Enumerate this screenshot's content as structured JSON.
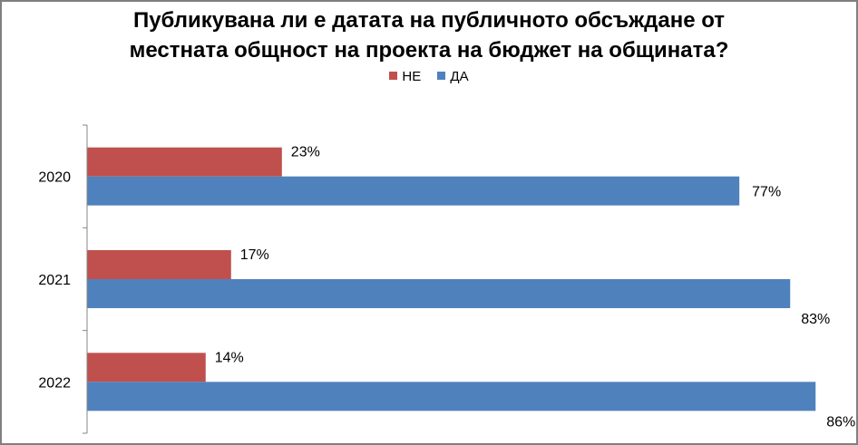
{
  "chart_data": {
    "type": "bar",
    "orientation": "horizontal",
    "title": "Публикувана ли е датата на публичното обсъждане от местната общност на проекта на бюджет на общината?",
    "title_lines": [
      "Публикувана ли е датата на публичното обсъждане от",
      "местната общност на проекта на бюджет на общината?"
    ],
    "categories": [
      "2020",
      "2021",
      "2022"
    ],
    "series": [
      {
        "name": "НЕ",
        "color": "#c0504d",
        "values": [
          23,
          17,
          14
        ],
        "labels": [
          "23%",
          "17%",
          "14%"
        ]
      },
      {
        "name": "ДА",
        "color": "#4f81bd",
        "values": [
          77,
          83,
          86
        ],
        "labels": [
          "77%",
          "83%",
          "86%"
        ]
      }
    ],
    "legend_order": [
      "НЕ",
      "ДА"
    ],
    "legend_position": "top",
    "value_unit": "%",
    "xlim": [
      0,
      100
    ],
    "grid": false,
    "show_value_axis": false,
    "data_labels": true
  }
}
